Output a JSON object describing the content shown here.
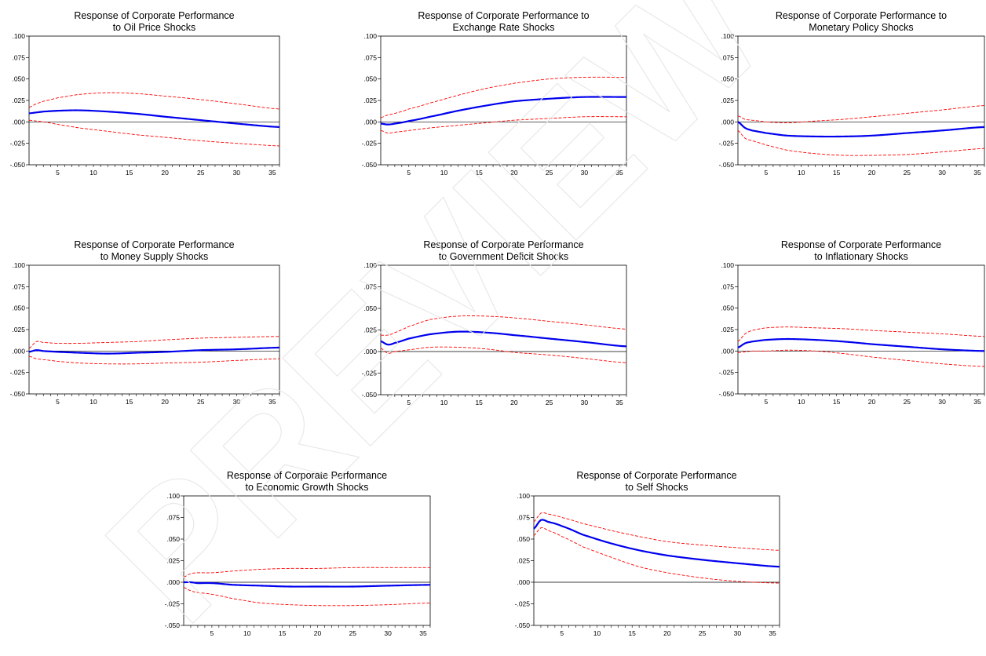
{
  "figure": {
    "watermark_text": "PREVIEW"
  },
  "colors": {
    "response": "#0000ee",
    "bands": "#ff0000",
    "zero_line": "#000000",
    "frame": "#000000",
    "watermark": "#e6e6e6"
  },
  "chart_data": [
    {
      "type": "line",
      "title_lines": [
        "Response of Corporate Performance",
        "to Oil Price Shocks"
      ],
      "ylim": [
        -0.05,
        0.1
      ],
      "yticks": [
        ".100",
        ".075",
        ".050",
        ".025",
        ".000",
        "-.025",
        "-.050"
      ],
      "xlim": [
        1,
        36
      ],
      "xticks": [
        "5",
        "10",
        "15",
        "20",
        "25",
        "30",
        "35"
      ],
      "x_knots": [
        1,
        2,
        3,
        5,
        8,
        12,
        16,
        20,
        25,
        30,
        36
      ],
      "series": [
        {
          "role": "response",
          "values": [
            0.01,
            0.011,
            0.012,
            0.013,
            0.0135,
            0.012,
            0.0095,
            0.006,
            0.002,
            -0.002,
            -0.006
          ]
        },
        {
          "role": "upper-band",
          "values": [
            0.017,
            0.021,
            0.024,
            0.028,
            0.032,
            0.034,
            0.033,
            0.03,
            0.026,
            0.021,
            0.015
          ]
        },
        {
          "role": "lower-band",
          "values": [
            0.002,
            0.001,
            0.0,
            -0.003,
            -0.007,
            -0.011,
            -0.015,
            -0.018,
            -0.022,
            -0.025,
            -0.028
          ]
        }
      ]
    },
    {
      "type": "line",
      "title_lines": [
        "Response of Corporate Performance to",
        "Exchange Rate Shocks"
      ],
      "ylim": [
        -0.05,
        0.1
      ],
      "yticks": [
        ".100",
        ".075",
        ".050",
        ".025",
        ".000",
        "-.025",
        "-.050"
      ],
      "xlim": [
        1,
        36
      ],
      "xticks": [
        "5",
        "10",
        "15",
        "20",
        "25",
        "30",
        "35"
      ],
      "x_knots": [
        1,
        2,
        3,
        5,
        8,
        12,
        16,
        20,
        25,
        30,
        36
      ],
      "series": [
        {
          "role": "response",
          "values": [
            -0.002,
            -0.003,
            -0.002,
            0.001,
            0.006,
            0.013,
            0.019,
            0.024,
            0.027,
            0.029,
            0.029
          ]
        },
        {
          "role": "upper-band",
          "values": [
            0.005,
            0.008,
            0.01,
            0.015,
            0.022,
            0.031,
            0.039,
            0.045,
            0.05,
            0.052,
            0.052
          ]
        },
        {
          "role": "lower-band",
          "values": [
            -0.01,
            -0.013,
            -0.012,
            -0.01,
            -0.007,
            -0.004,
            -0.001,
            0.002,
            0.004,
            0.006,
            0.006
          ]
        }
      ]
    },
    {
      "type": "line",
      "title_lines": [
        "Response of Corporate Performance to",
        "Monetary Policy Shocks"
      ],
      "ylim": [
        -0.05,
        0.1
      ],
      "yticks": [
        ".100",
        ".075",
        ".050",
        ".025",
        ".000",
        "-.025",
        "-.050"
      ],
      "xlim": [
        1,
        36
      ],
      "xticks": [
        "5",
        "10",
        "15",
        "20",
        "25",
        "30",
        "35"
      ],
      "x_knots": [
        1,
        2,
        3,
        5,
        8,
        12,
        16,
        20,
        25,
        30,
        36
      ],
      "series": [
        {
          "role": "response",
          "values": [
            0.0,
            -0.007,
            -0.01,
            -0.013,
            -0.016,
            -0.017,
            -0.017,
            -0.016,
            -0.013,
            -0.01,
            -0.006
          ]
        },
        {
          "role": "upper-band",
          "values": [
            0.007,
            0.003,
            0.002,
            0.0,
            -0.001,
            0.001,
            0.003,
            0.006,
            0.01,
            0.014,
            0.019
          ]
        },
        {
          "role": "lower-band",
          "values": [
            -0.01,
            -0.019,
            -0.022,
            -0.027,
            -0.033,
            -0.037,
            -0.039,
            -0.039,
            -0.038,
            -0.035,
            -0.031
          ]
        }
      ]
    },
    {
      "type": "line",
      "title_lines": [
        "Response of Corporate Performance",
        "to Money Supply Shocks"
      ],
      "ylim": [
        -0.05,
        0.1
      ],
      "yticks": [
        ".100",
        ".075",
        ".050",
        ".025",
        ".000",
        "-.025",
        "-.050"
      ],
      "xlim": [
        1,
        36
      ],
      "xticks": [
        "5",
        "10",
        "15",
        "20",
        "25",
        "30",
        "35"
      ],
      "x_knots": [
        1,
        2,
        3,
        5,
        8,
        12,
        16,
        20,
        25,
        30,
        36
      ],
      "series": [
        {
          "role": "response",
          "values": [
            -0.001,
            0.001,
            0.0,
            -0.001,
            -0.002,
            -0.003,
            -0.002,
            -0.001,
            0.001,
            0.002,
            0.004
          ]
        },
        {
          "role": "upper-band",
          "values": [
            0.003,
            0.011,
            0.01,
            0.009,
            0.009,
            0.01,
            0.011,
            0.013,
            0.015,
            0.016,
            0.017
          ]
        },
        {
          "role": "lower-band",
          "values": [
            -0.006,
            -0.009,
            -0.01,
            -0.012,
            -0.014,
            -0.015,
            -0.015,
            -0.014,
            -0.013,
            -0.011,
            -0.009
          ]
        }
      ]
    },
    {
      "type": "line",
      "title_lines": [
        "Response of Corporate Performance",
        "to Government Deficit Shocks"
      ],
      "ylim": [
        -0.05,
        0.1
      ],
      "yticks": [
        ".100",
        ".075",
        ".050",
        ".025",
        ".000",
        "-.025",
        "-.050"
      ],
      "xlim": [
        1,
        36
      ],
      "xticks": [
        "5",
        "10",
        "15",
        "20",
        "25",
        "30",
        "35"
      ],
      "x_knots": [
        1,
        2,
        3,
        5,
        8,
        12,
        16,
        20,
        25,
        30,
        36
      ],
      "series": [
        {
          "role": "response",
          "values": [
            0.012,
            0.008,
            0.01,
            0.015,
            0.02,
            0.023,
            0.022,
            0.019,
            0.015,
            0.011,
            0.006
          ]
        },
        {
          "role": "upper-band",
          "values": [
            0.019,
            0.019,
            0.022,
            0.029,
            0.037,
            0.041,
            0.041,
            0.039,
            0.035,
            0.031,
            0.026
          ]
        },
        {
          "role": "lower-band",
          "values": [
            0.004,
            -0.002,
            0.0,
            0.002,
            0.005,
            0.005,
            0.003,
            -0.001,
            -0.004,
            -0.008,
            -0.013
          ]
        }
      ]
    },
    {
      "type": "line",
      "title_lines": [
        "Response of Corporate Performance",
        "to Inflationary Shocks"
      ],
      "ylim": [
        -0.05,
        0.1
      ],
      "yticks": [
        ".100",
        ".075",
        ".050",
        ".025",
        ".000",
        "-.025",
        "-.050"
      ],
      "xlim": [
        1,
        36
      ],
      "xticks": [
        "5",
        "10",
        "15",
        "20",
        "25",
        "30",
        "35"
      ],
      "x_knots": [
        1,
        2,
        3,
        5,
        8,
        12,
        16,
        20,
        25,
        30,
        36
      ],
      "series": [
        {
          "role": "response",
          "values": [
            0.004,
            0.009,
            0.011,
            0.013,
            0.014,
            0.013,
            0.011,
            0.008,
            0.005,
            0.002,
            0.0
          ]
        },
        {
          "role": "upper-band",
          "values": [
            0.011,
            0.02,
            0.024,
            0.027,
            0.028,
            0.027,
            0.026,
            0.024,
            0.022,
            0.02,
            0.017
          ]
        },
        {
          "role": "lower-band",
          "values": [
            -0.002,
            -0.001,
            0.0,
            0.0,
            0.001,
            0.0,
            -0.003,
            -0.007,
            -0.011,
            -0.015,
            -0.018
          ]
        }
      ]
    },
    {
      "type": "line",
      "title_lines": [
        "Response of Corporate Performance",
        "to Economic Growth Shocks"
      ],
      "ylim": [
        -0.05,
        0.1
      ],
      "yticks": [
        ".100",
        ".075",
        ".050",
        ".025",
        ".000",
        "-.025",
        "-.050"
      ],
      "xlim": [
        1,
        36
      ],
      "xticks": [
        "5",
        "10",
        "15",
        "20",
        "25",
        "30",
        "35"
      ],
      "x_knots": [
        1,
        2,
        3,
        5,
        8,
        12,
        16,
        20,
        25,
        30,
        36
      ],
      "series": [
        {
          "role": "response",
          "values": [
            0.0,
            0.0,
            -0.001,
            -0.001,
            -0.003,
            -0.004,
            -0.005,
            -0.005,
            -0.005,
            -0.004,
            -0.003
          ]
        },
        {
          "role": "upper-band",
          "values": [
            0.006,
            0.01,
            0.011,
            0.011,
            0.013,
            0.015,
            0.016,
            0.016,
            0.017,
            0.017,
            0.017
          ]
        },
        {
          "role": "lower-band",
          "values": [
            -0.006,
            -0.01,
            -0.012,
            -0.014,
            -0.019,
            -0.024,
            -0.026,
            -0.027,
            -0.027,
            -0.026,
            -0.024
          ]
        }
      ]
    },
    {
      "type": "line",
      "title_lines": [
        "Response of Corporate Performance",
        "to Self Shocks"
      ],
      "ylim": [
        -0.05,
        0.1
      ],
      "yticks": [
        ".100",
        ".075",
        ".050",
        ".025",
        ".000",
        "-.025",
        "-.050"
      ],
      "xlim": [
        1,
        36
      ],
      "xticks": [
        "5",
        "10",
        "15",
        "20",
        "25",
        "30",
        "35"
      ],
      "x_knots": [
        1,
        2,
        3,
        5,
        8,
        12,
        16,
        20,
        25,
        30,
        36
      ],
      "series": [
        {
          "role": "response",
          "values": [
            0.062,
            0.072,
            0.07,
            0.065,
            0.055,
            0.045,
            0.037,
            0.031,
            0.026,
            0.022,
            0.018
          ]
        },
        {
          "role": "upper-band",
          "values": [
            0.07,
            0.08,
            0.079,
            0.075,
            0.068,
            0.06,
            0.053,
            0.047,
            0.043,
            0.04,
            0.037
          ]
        },
        {
          "role": "lower-band",
          "values": [
            0.054,
            0.063,
            0.06,
            0.053,
            0.041,
            0.029,
            0.018,
            0.011,
            0.005,
            0.001,
            -0.001
          ]
        }
      ]
    }
  ]
}
